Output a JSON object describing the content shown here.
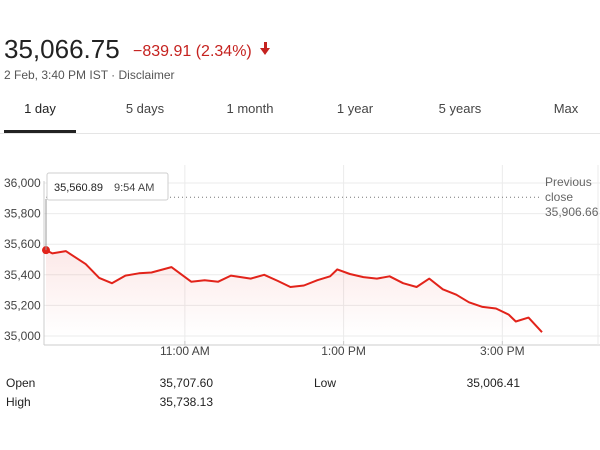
{
  "quote": {
    "price": "35,066.75",
    "change": "−839.91 (2.34%)",
    "change_color": "#c5221f",
    "direction_icon": "down-arrow-icon",
    "timestamp": "2 Feb, 3:40 PM IST",
    "separator": "·",
    "disclaimer": "Disclaimer"
  },
  "tabs": [
    {
      "label": "1 day",
      "active": true
    },
    {
      "label": "5 days"
    },
    {
      "label": "1 month"
    },
    {
      "label": "1 year"
    },
    {
      "label": "5 years"
    },
    {
      "label": "Max"
    }
  ],
  "chart_data": {
    "type": "line",
    "y_ticks": [
      "36,000",
      "35,800",
      "35,600",
      "35,400",
      "35,200",
      "35,000"
    ],
    "ylim": [
      35000,
      36000
    ],
    "x_ticks": [
      "11:00 AM",
      "1:00 PM",
      "3:00 PM"
    ],
    "x_tick_hours": [
      11,
      13,
      15
    ],
    "session_range_hours": [
      9.25,
      15.5
    ],
    "previous_close": {
      "label_line1": "Previous",
      "label_line2": "close",
      "value": "35,906.66",
      "y": 35906.66
    },
    "tooltip": {
      "value": "35,560.89",
      "time": "9:54 AM"
    },
    "line_color": "#e2231a",
    "series": [
      {
        "x_hours": [
          9.25,
          9.33,
          9.5,
          9.75,
          9.92,
          10.08,
          10.25,
          10.42,
          10.58,
          10.83,
          11.08,
          11.25,
          11.42,
          11.58,
          11.83,
          12.0,
          12.17,
          12.33,
          12.5,
          12.67,
          12.83,
          12.92,
          13.08,
          13.25,
          13.42,
          13.58,
          13.75,
          13.92,
          14.08,
          14.25,
          14.42,
          14.58,
          14.75,
          14.92,
          15.08,
          15.17,
          15.33,
          15.5
        ],
        "y": [
          35561,
          35540,
          35555,
          35470,
          35380,
          35345,
          35395,
          35410,
          35415,
          35450,
          35355,
          35365,
          35355,
          35395,
          35375,
          35400,
          35360,
          35320,
          35330,
          35365,
          35390,
          35435,
          35405,
          35385,
          35375,
          35390,
          35345,
          35320,
          35375,
          35305,
          35270,
          35220,
          35190,
          35180,
          35140,
          35095,
          35120,
          35025
        ]
      }
    ]
  },
  "stats": {
    "open_label": "Open",
    "open_value": "35,707.60",
    "high_label": "High",
    "high_value": "35,738.13",
    "low_label": "Low",
    "low_value": "35,006.41"
  }
}
